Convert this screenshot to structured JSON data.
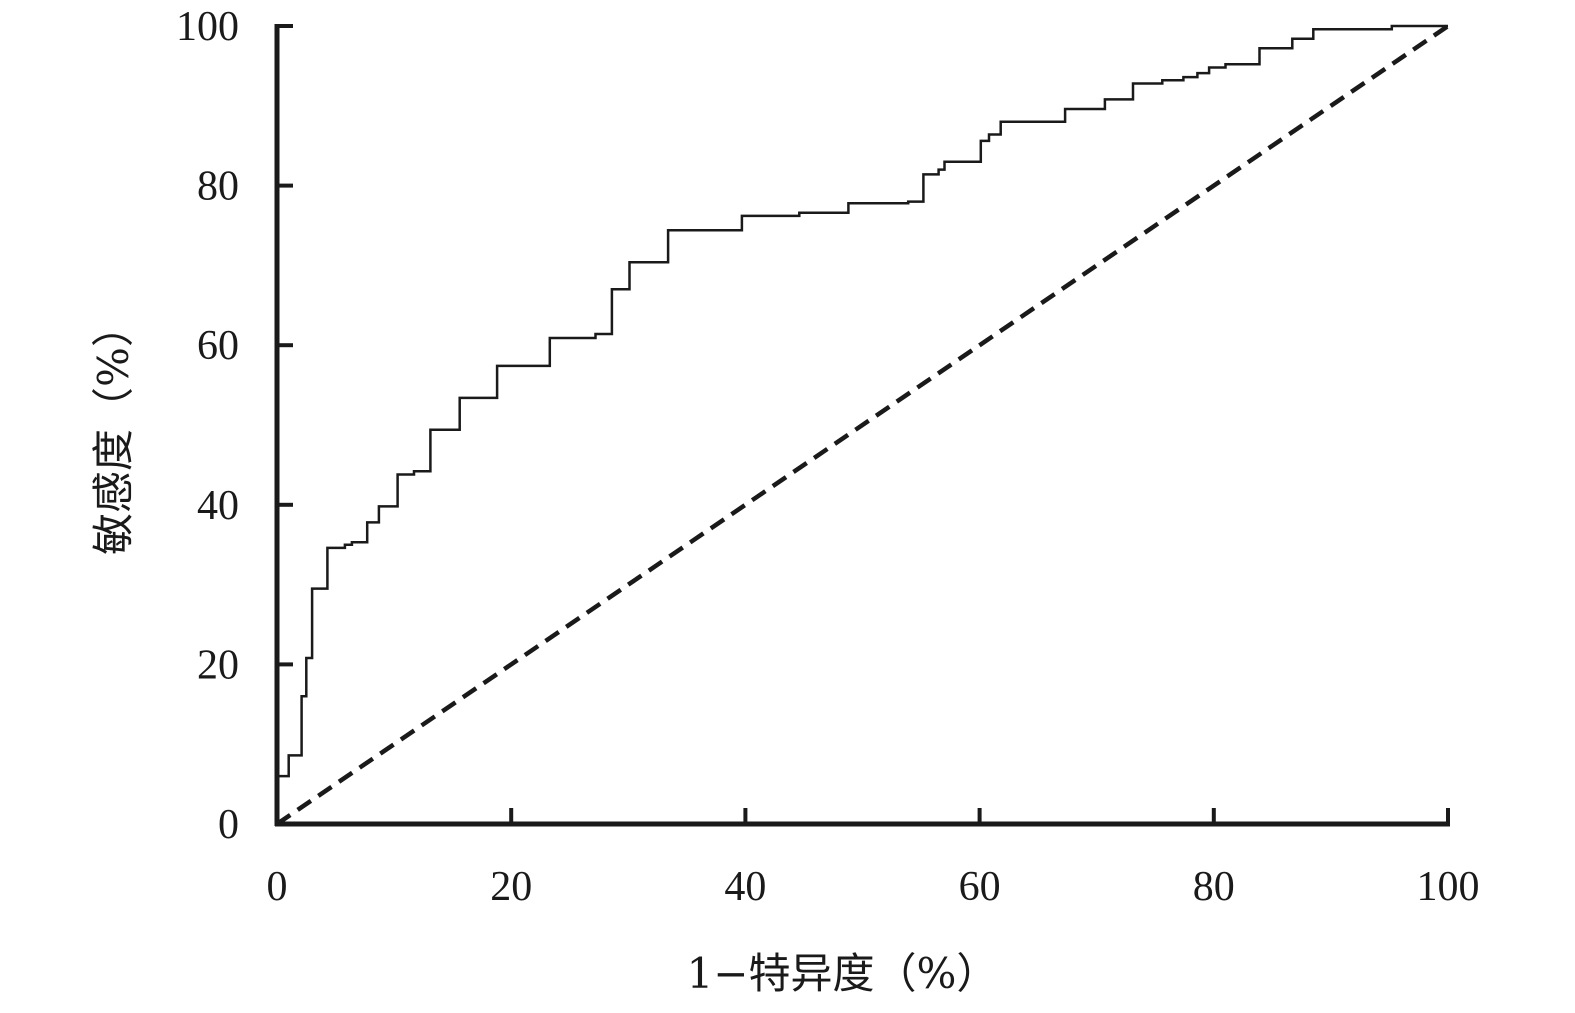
{
  "chart_data": {
    "type": "line",
    "title": "",
    "xlabel": "1−特异度（%）",
    "ylabel": "敏感度（%）",
    "xlim": [
      0,
      100
    ],
    "ylim": [
      0,
      100
    ],
    "x_ticks": [
      "0",
      "20",
      "40",
      "60",
      "80",
      "100"
    ],
    "y_ticks": [
      "0",
      "20",
      "40",
      "60",
      "80",
      "100"
    ],
    "grid": false,
    "legend": "none",
    "series": [
      {
        "style": "solid-step",
        "color": "#1a1a1a",
        "points": [
          [
            0.0,
            0.0
          ],
          [
            0.0,
            6.0
          ],
          [
            1.0,
            6.0
          ],
          [
            1.0,
            8.6
          ],
          [
            2.1,
            8.6
          ],
          [
            2.1,
            16.0
          ],
          [
            2.5,
            16.0
          ],
          [
            2.5,
            20.8
          ],
          [
            3.0,
            20.8
          ],
          [
            3.0,
            29.5
          ],
          [
            4.3,
            29.5
          ],
          [
            4.3,
            34.6
          ],
          [
            5.8,
            34.6
          ],
          [
            5.8,
            35.0
          ],
          [
            6.4,
            35.0
          ],
          [
            6.4,
            35.3
          ],
          [
            7.7,
            35.3
          ],
          [
            7.7,
            37.8
          ],
          [
            8.7,
            37.8
          ],
          [
            8.7,
            39.8
          ],
          [
            10.3,
            39.8
          ],
          [
            10.3,
            43.8
          ],
          [
            11.7,
            43.8
          ],
          [
            11.7,
            44.2
          ],
          [
            13.1,
            44.2
          ],
          [
            13.1,
            49.4
          ],
          [
            15.6,
            49.4
          ],
          [
            15.6,
            53.4
          ],
          [
            18.8,
            53.4
          ],
          [
            18.8,
            57.4
          ],
          [
            23.3,
            57.4
          ],
          [
            23.3,
            60.9
          ],
          [
            27.2,
            60.9
          ],
          [
            27.2,
            61.4
          ],
          [
            28.6,
            61.4
          ],
          [
            28.6,
            67.0
          ],
          [
            30.1,
            67.0
          ],
          [
            30.1,
            70.4
          ],
          [
            33.4,
            70.4
          ],
          [
            33.4,
            74.4
          ],
          [
            39.7,
            74.4
          ],
          [
            39.7,
            76.2
          ],
          [
            44.6,
            76.2
          ],
          [
            44.6,
            76.6
          ],
          [
            48.8,
            76.6
          ],
          [
            48.8,
            77.8
          ],
          [
            53.9,
            77.8
          ],
          [
            53.9,
            78.0
          ],
          [
            55.2,
            78.0
          ],
          [
            55.2,
            81.4
          ],
          [
            56.5,
            81.4
          ],
          [
            56.5,
            82.0
          ],
          [
            57.0,
            82.0
          ],
          [
            57.0,
            83.0
          ],
          [
            60.1,
            83.0
          ],
          [
            60.1,
            85.6
          ],
          [
            60.8,
            85.6
          ],
          [
            60.8,
            86.4
          ],
          [
            61.8,
            86.4
          ],
          [
            61.8,
            88.0
          ],
          [
            67.3,
            88.0
          ],
          [
            67.3,
            89.6
          ],
          [
            70.7,
            89.6
          ],
          [
            70.7,
            90.8
          ],
          [
            73.1,
            90.8
          ],
          [
            73.1,
            92.8
          ],
          [
            75.6,
            92.8
          ],
          [
            75.6,
            93.2
          ],
          [
            77.4,
            93.2
          ],
          [
            77.4,
            93.6
          ],
          [
            78.6,
            93.6
          ],
          [
            78.6,
            94.1
          ],
          [
            79.6,
            94.1
          ],
          [
            79.6,
            94.8
          ],
          [
            81.0,
            94.8
          ],
          [
            81.0,
            95.2
          ],
          [
            83.9,
            95.2
          ],
          [
            83.9,
            97.2
          ],
          [
            86.7,
            97.2
          ],
          [
            86.7,
            98.4
          ],
          [
            88.5,
            98.4
          ],
          [
            88.5,
            99.6
          ],
          [
            95.2,
            99.6
          ],
          [
            95.2,
            100.0
          ],
          [
            100.0,
            100.0
          ]
        ]
      },
      {
        "style": "dashed",
        "color": "#1a1a1a",
        "points": [
          [
            0,
            0
          ],
          [
            100,
            100
          ]
        ]
      }
    ]
  }
}
